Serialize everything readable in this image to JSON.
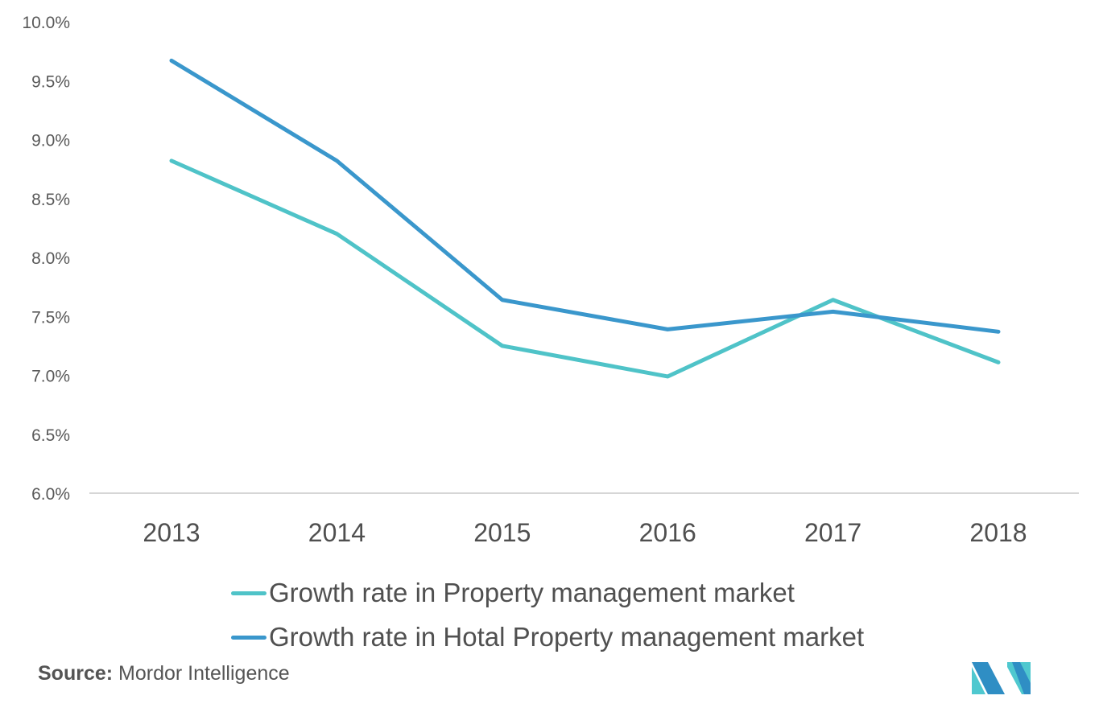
{
  "chart_data": {
    "type": "line",
    "title": "",
    "xlabel": "",
    "ylabel": "",
    "categories": [
      "2013",
      "2014",
      "2015",
      "2016",
      "2017",
      "2018"
    ],
    "series": [
      {
        "name": "Growth rate in Property management market",
        "color": "#4fc3c8",
        "values": [
          8.82,
          8.2,
          7.25,
          6.99,
          7.64,
          7.11
        ]
      },
      {
        "name": "Growth rate in Hotal Property management market",
        "color": "#3a97cc",
        "values": [
          9.67,
          8.82,
          7.64,
          7.39,
          7.54,
          7.37
        ]
      }
    ],
    "ylim": [
      6.0,
      10.0
    ],
    "yticks": [
      "6.0%",
      "6.5%",
      "7.0%",
      "7.5%",
      "8.0%",
      "8.5%",
      "9.0%",
      "9.5%",
      "10.0%"
    ],
    "ytick_values": [
      6.0,
      6.5,
      7.0,
      7.5,
      8.0,
      8.5,
      9.0,
      9.5,
      10.0
    ],
    "grid": false,
    "legend_position": "bottom"
  },
  "footer": {
    "source_label": "Source:",
    "source_name": "Mordor Intelligence",
    "logo": "mordor-intelligence-logo",
    "logo_colors": {
      "dark": "#2f8ec4",
      "light": "#4fc8cf"
    }
  }
}
